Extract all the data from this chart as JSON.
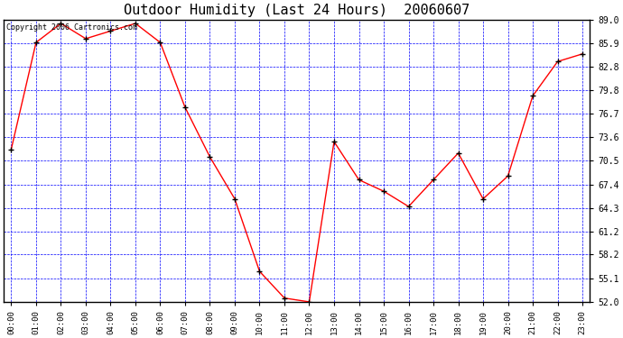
{
  "title": "Outdoor Humidity (Last 24 Hours)  20060607",
  "copyright_text": "Copyright 2006 Cartronics.com",
  "x_labels": [
    "00:00",
    "01:00",
    "02:00",
    "03:00",
    "04:00",
    "05:00",
    "06:00",
    "07:00",
    "08:00",
    "09:00",
    "10:00",
    "11:00",
    "12:00",
    "13:00",
    "14:00",
    "15:00",
    "16:00",
    "17:00",
    "18:00",
    "19:00",
    "20:00",
    "21:00",
    "22:00",
    "23:00"
  ],
  "y_values": [
    72.0,
    86.0,
    88.5,
    86.5,
    87.5,
    88.5,
    86.0,
    77.5,
    71.0,
    65.5,
    56.0,
    52.5,
    52.0,
    73.0,
    68.0,
    66.5,
    64.5,
    68.0,
    71.5,
    65.5,
    68.5,
    79.0,
    83.5,
    84.5
  ],
  "ylim": [
    52.0,
    89.0
  ],
  "yticks": [
    52.0,
    55.1,
    58.2,
    61.2,
    64.3,
    67.4,
    70.5,
    73.6,
    76.7,
    79.8,
    82.8,
    85.9,
    89.0
  ],
  "line_color": "red",
  "marker": "+",
  "marker_color": "black",
  "bg_color": "#ffffff",
  "plot_bg_color": "#ffffff",
  "grid_color": "blue",
  "border_color": "black",
  "title_color": "black",
  "text_color": "black",
  "title_fontsize": 11
}
